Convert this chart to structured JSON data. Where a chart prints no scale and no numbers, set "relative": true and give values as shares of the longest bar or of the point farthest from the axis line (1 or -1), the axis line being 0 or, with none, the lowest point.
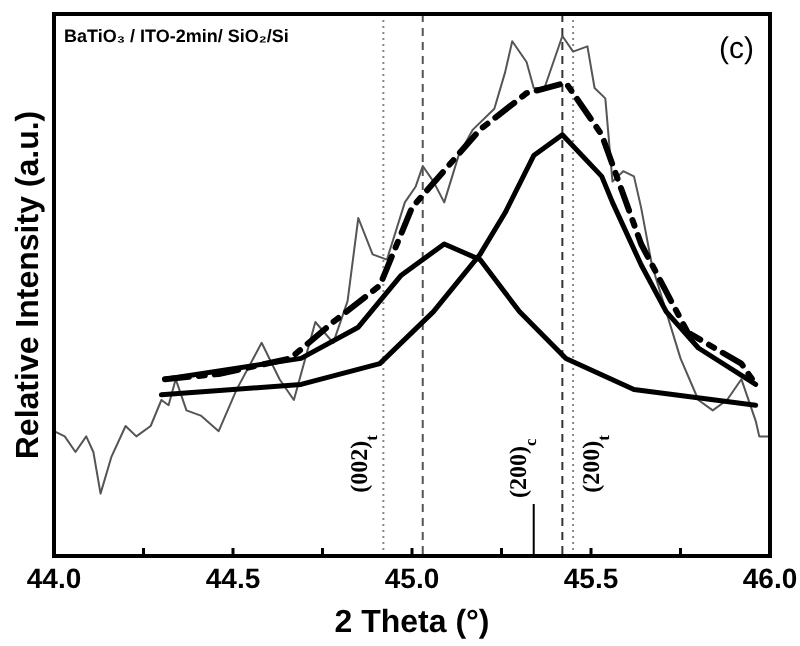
{
  "chart_data": {
    "type": "line",
    "title": "BaTiO₃ / ITO-2min/ SiO₂/Si",
    "xlabel": "2 Theta (°)",
    "ylabel": "Relative Intensity (a.u.)",
    "relative": true,
    "xlim": [
      44.0,
      46.0
    ],
    "xticks": [
      {
        "value": 44.0,
        "label": "44.0"
      },
      {
        "value": 44.25,
        "label": null
      },
      44.5,
      {
        "value": 44.75,
        "label": null
      },
      {
        "value": 45.0,
        "label": "45.0"
      },
      {
        "value": 45.25,
        "label": null
      },
      45.5,
      {
        "value": 45.75,
        "label": null
      },
      {
        "value": 46.0,
        "label": "46.0"
      }
    ],
    "grid": false,
    "series": [
      {
        "color": "#555555",
        "line_style": "solid",
        "x": [
          44.0,
          44.03,
          44.06,
          44.09,
          44.11,
          44.13,
          44.16,
          44.2,
          44.23,
          44.27,
          44.3,
          44.32,
          44.34,
          44.37,
          44.41,
          44.46,
          44.51,
          44.58,
          44.63,
          44.67,
          44.73,
          44.78,
          44.82,
          44.85,
          44.89,
          44.93,
          44.98,
          45.01,
          45.03,
          45.06,
          45.09,
          45.13,
          45.17,
          45.23,
          45.26,
          45.28,
          45.32,
          45.34,
          45.37,
          45.42,
          45.45,
          45.49,
          45.51,
          45.54,
          45.56,
          45.59,
          45.62,
          45.64,
          45.67,
          45.71,
          45.75,
          45.8,
          45.84,
          45.88,
          45.92,
          45.96,
          45.97,
          46.0
        ],
        "values": [
          0.24,
          0.23,
          0.2,
          0.23,
          0.2,
          0.12,
          0.19,
          0.25,
          0.23,
          0.25,
          0.3,
          0.29,
          0.34,
          0.28,
          0.27,
          0.24,
          0.32,
          0.41,
          0.34,
          0.3,
          0.45,
          0.41,
          0.49,
          0.65,
          0.58,
          0.57,
          0.68,
          0.71,
          0.75,
          0.72,
          0.68,
          0.77,
          0.82,
          0.86,
          0.93,
          0.99,
          0.95,
          0.9,
          0.9,
          1.0,
          0.97,
          0.98,
          0.9,
          0.88,
          0.72,
          0.74,
          0.73,
          0.67,
          0.56,
          0.47,
          0.38,
          0.3,
          0.28,
          0.3,
          0.34,
          0.26,
          0.23,
          0.23
        ]
      },
      {
        "color": "#000000",
        "line_style": "dashed",
        "x": [
          44.31,
          44.46,
          44.66,
          44.78,
          44.91,
          45.0,
          45.19,
          45.32,
          45.43,
          45.53,
          45.64,
          45.77,
          45.92,
          45.96
        ],
        "values": [
          0.34,
          0.35,
          0.38,
          0.45,
          0.52,
          0.67,
          0.82,
          0.89,
          0.91,
          0.81,
          0.6,
          0.43,
          0.37,
          0.33
        ]
      },
      {
        "color": "#000000",
        "line_style": "solid",
        "x": [
          44.3,
          44.5,
          44.69,
          44.91,
          45.06,
          45.19,
          45.26,
          45.34,
          45.42,
          45.53,
          45.56,
          45.64,
          45.71,
          45.8,
          45.96
        ],
        "values": [
          0.31,
          0.32,
          0.33,
          0.37,
          0.47,
          0.58,
          0.66,
          0.77,
          0.81,
          0.73,
          0.68,
          0.56,
          0.47,
          0.4,
          0.33
        ]
      },
      {
        "color": "#000000",
        "line_style": "solid",
        "x": [
          44.31,
          44.69,
          44.85,
          44.97,
          45.09,
          45.19,
          45.3,
          45.43,
          45.62,
          45.96
        ],
        "values": [
          0.34,
          0.38,
          0.44,
          0.54,
          0.6,
          0.57,
          0.47,
          0.38,
          0.32,
          0.29
        ]
      },
      {
        "type": "bar",
        "color": "#000000",
        "x": [
          45.34
        ],
        "values": [
          0.1
        ]
      }
    ],
    "ref_lines": [
      {
        "axis": "x",
        "value": 44.92,
        "label": "(002)$_{t}$",
        "color": "#888888",
        "line_style": "dotted"
      },
      {
        "axis": "x",
        "value": 45.03,
        "color": "#555555",
        "line_style": "dashed"
      },
      {
        "axis": "x",
        "value": 45.42,
        "color": "#333333",
        "line_style": "dashed"
      },
      {
        "axis": "x",
        "value": 45.45,
        "label": "(200)$_{t}$",
        "color": "#888888",
        "line_style": "dotted"
      }
    ],
    "annotations": [
      "(c)",
      {
        "text": "(200)$_{c}$",
        "x": 45.34,
        "y": 0.1
      }
    ]
  }
}
